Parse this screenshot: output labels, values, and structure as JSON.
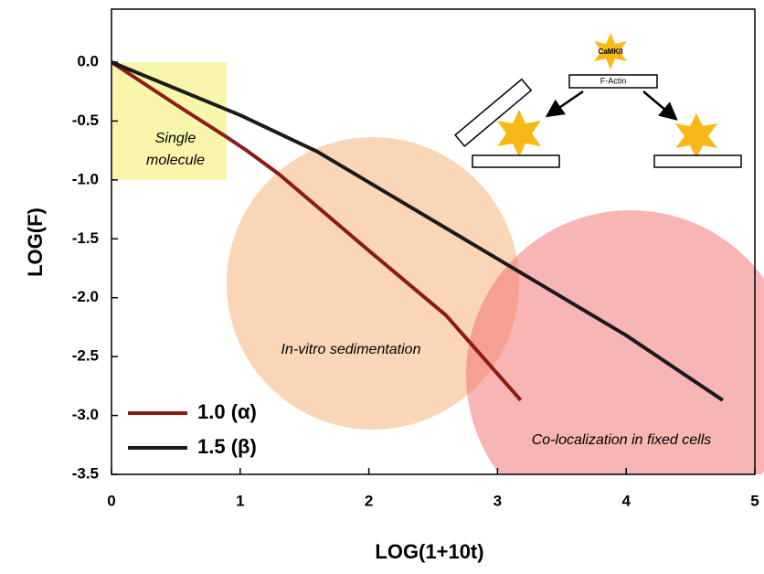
{
  "chart_data": {
    "type": "line",
    "x_label": "LOG(1+10t)",
    "y_label": "LOG(F)",
    "xlim": [
      0,
      5
    ],
    "ylim": [
      -3.5,
      0.45
    ],
    "xticks": [
      0,
      1,
      2,
      3,
      4,
      5
    ],
    "yticks": [
      {
        "value": 0,
        "label": "0.0"
      },
      -0.5,
      {
        "value": -1,
        "label": "-1.0"
      },
      -1.5,
      {
        "value": -2,
        "label": "-2.0"
      },
      -2.5,
      {
        "value": -3,
        "label": "-3.0"
      },
      -3.5
    ],
    "series": [
      {
        "name": "1.0 (α)",
        "color": "#8b1c14",
        "x": [
          0,
          0.5,
          0.9,
          1.05,
          1.3,
          2,
          2.6,
          3.18
        ],
        "values": [
          0,
          -0.36,
          -0.64,
          -0.75,
          -0.95,
          -1.6,
          -2.15,
          -2.87
        ]
      },
      {
        "name": "1.5 (β)",
        "color": "#1a1a1a",
        "x": [
          0,
          1,
          1.6,
          2,
          3,
          4,
          4.75
        ],
        "values": [
          0,
          -0.45,
          -0.76,
          -1.02,
          -1.67,
          -2.32,
          -2.87
        ]
      }
    ],
    "legend": "lower left",
    "annotations": [
      "Single",
      "molecule",
      "In-vitro sedimentation",
      "Co-localization in fixed cells"
    ],
    "inset_labels": [
      "CaMKII",
      "F-Actin"
    ]
  }
}
